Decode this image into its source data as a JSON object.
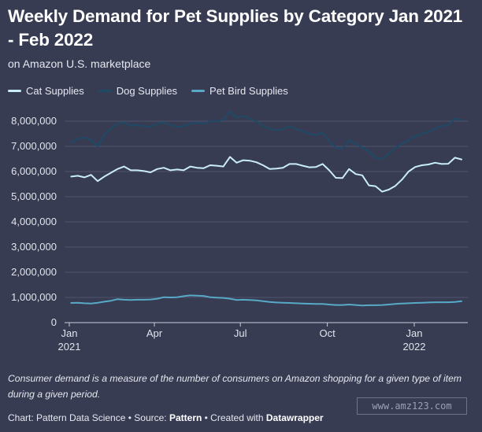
{
  "header": {
    "title": "Weekly Demand for Pet Supplies by Category Jan 2021 - Feb 2022",
    "subtitle": "on Amazon U.S. marketplace"
  },
  "legend": {
    "items": [
      {
        "label": "Cat Supplies",
        "color": "#c9ecf7"
      },
      {
        "label": "Dog Supplies",
        "color": "#1f4a66"
      },
      {
        "label": "Pet Bird Supplies",
        "color": "#58a9c6"
      }
    ]
  },
  "footer": {
    "note": "Consumer demand is a measure of the number of consumers on Amazon shopping for a given type of item during a given period.",
    "credit_prefix": "Chart: Pattern Data Science • Source: ",
    "source": "Pattern",
    "credit_middle": " • Created with ",
    "tool": "Datawrapper",
    "watermark": "www.amz123.com"
  },
  "chart_data": {
    "type": "line",
    "x_type": "date",
    "x": [
      "2021-01-03",
      "2021-01-10",
      "2021-01-17",
      "2021-01-24",
      "2021-01-31",
      "2021-02-07",
      "2021-02-14",
      "2021-02-21",
      "2021-02-28",
      "2021-03-07",
      "2021-03-14",
      "2021-03-21",
      "2021-03-28",
      "2021-04-04",
      "2021-04-11",
      "2021-04-18",
      "2021-04-25",
      "2021-05-02",
      "2021-05-09",
      "2021-05-16",
      "2021-05-23",
      "2021-05-30",
      "2021-06-06",
      "2021-06-13",
      "2021-06-20",
      "2021-06-27",
      "2021-07-04",
      "2021-07-11",
      "2021-07-18",
      "2021-07-25",
      "2021-08-01",
      "2021-08-08",
      "2021-08-15",
      "2021-08-22",
      "2021-08-29",
      "2021-09-05",
      "2021-09-12",
      "2021-09-19",
      "2021-09-26",
      "2021-10-03",
      "2021-10-10",
      "2021-10-17",
      "2021-10-24",
      "2021-10-31",
      "2021-11-07",
      "2021-11-14",
      "2021-11-21",
      "2021-11-28",
      "2021-12-05",
      "2021-12-12",
      "2021-12-19",
      "2021-12-26",
      "2022-01-02",
      "2022-01-09",
      "2022-01-16",
      "2022-01-23",
      "2022-01-30",
      "2022-02-06",
      "2022-02-13",
      "2022-02-20"
    ],
    "series": [
      {
        "name": "Cat Supplies",
        "color": "#c9ecf7",
        "values": [
          5800000,
          5830000,
          5770000,
          5870000,
          5620000,
          5800000,
          5950000,
          6100000,
          6200000,
          6050000,
          6050000,
          6020000,
          5970000,
          6100000,
          6150000,
          6050000,
          6080000,
          6050000,
          6200000,
          6150000,
          6130000,
          6250000,
          6230000,
          6200000,
          6580000,
          6350000,
          6450000,
          6430000,
          6370000,
          6250000,
          6100000,
          6120000,
          6150000,
          6300000,
          6300000,
          6230000,
          6170000,
          6180000,
          6300000,
          6050000,
          5750000,
          5740000,
          6100000,
          5900000,
          5850000,
          5450000,
          5420000,
          5200000,
          5280000,
          5430000,
          5680000,
          6000000,
          6180000,
          6250000,
          6280000,
          6350000,
          6300000,
          6310000,
          6550000,
          6480000
        ]
      },
      {
        "name": "Dog Supplies",
        "color": "#1f4a66",
        "values": [
          7150000,
          7300000,
          7350000,
          7250000,
          7000000,
          7450000,
          7700000,
          7900000,
          7950000,
          7820000,
          7850000,
          7800000,
          7780000,
          7900000,
          7950000,
          7850000,
          7780000,
          7800000,
          7900000,
          7950000,
          7900000,
          8000000,
          8000000,
          8050000,
          8380000,
          8150000,
          8200000,
          8100000,
          8000000,
          7800000,
          7700000,
          7650000,
          7680000,
          7800000,
          7700000,
          7600000,
          7500000,
          7450000,
          7550000,
          7200000,
          6950000,
          6900000,
          7250000,
          7100000,
          6950000,
          6800000,
          6550000,
          6500000,
          6700000,
          6950000,
          7100000,
          7250000,
          7400000,
          7500000,
          7580000,
          7700000,
          7800000,
          7850000,
          8100000,
          8050000
        ]
      },
      {
        "name": "Pet Bird Supplies",
        "color": "#58a9c6",
        "values": [
          780000,
          790000,
          770000,
          760000,
          790000,
          830000,
          870000,
          930000,
          910000,
          900000,
          910000,
          910000,
          920000,
          950000,
          1010000,
          1000000,
          1010000,
          1050000,
          1080000,
          1070000,
          1060000,
          1010000,
          990000,
          980000,
          950000,
          900000,
          910000,
          900000,
          880000,
          850000,
          820000,
          800000,
          790000,
          780000,
          770000,
          760000,
          750000,
          740000,
          740000,
          720000,
          700000,
          700000,
          720000,
          700000,
          680000,
          690000,
          690000,
          700000,
          720000,
          740000,
          760000,
          770000,
          780000,
          790000,
          800000,
          810000,
          810000,
          810000,
          820000,
          850000
        ]
      }
    ],
    "ylim": [
      0,
      8000000
    ],
    "yticks": [
      "8,000,000",
      "7,000,000",
      "6,000,000",
      "5,000,000",
      "4,000,000",
      "3,000,000",
      "2,000,000",
      "1,000,000",
      "0"
    ],
    "xticks": [
      {
        "month": "Jan",
        "year": "2021",
        "date": "2021-01-01"
      },
      {
        "month": "Apr",
        "year": "",
        "date": "2021-04-01"
      },
      {
        "month": "Jul",
        "year": "",
        "date": "2021-07-01"
      },
      {
        "month": "Oct",
        "year": "",
        "date": "2021-10-01"
      },
      {
        "month": "Jan",
        "year": "2022",
        "date": "2022-01-01"
      }
    ],
    "grid": true,
    "legend_position": "top-left"
  }
}
